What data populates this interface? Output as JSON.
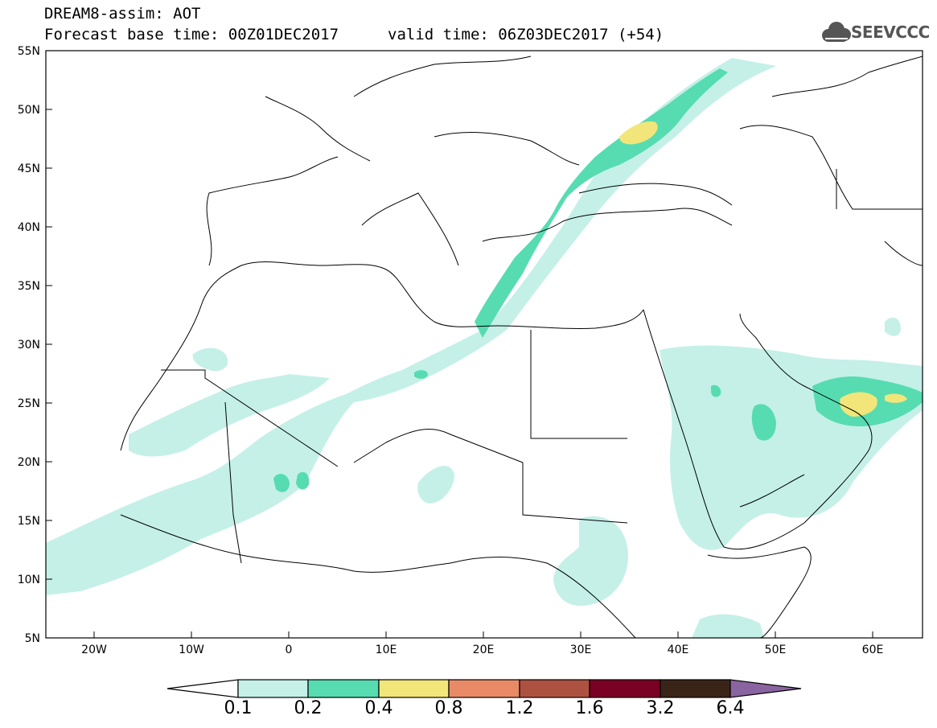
{
  "header": {
    "title_line1": "DREAM8-assim: AOT",
    "title_line2": "Forecast base time: 00Z01DEC2017",
    "valid_time": "valid time: 06Z03DEC2017 (+54)",
    "logo_text": "SEEVCCC"
  },
  "map": {
    "lat_labels": [
      "55N",
      "50N",
      "45N",
      "40N",
      "35N",
      "30N",
      "25N",
      "20N",
      "15N",
      "10N",
      "5N"
    ],
    "lon_labels": [
      "20W",
      "10W",
      "0",
      "10E",
      "20E",
      "30E",
      "40E",
      "50E",
      "60E"
    ],
    "lat_range": [
      5,
      55
    ],
    "lon_range": [
      -25,
      65
    ]
  },
  "legend": {
    "levels": [
      "0.1",
      "0.2",
      "0.4",
      "0.8",
      "1.2",
      "1.6",
      "3.2",
      "6.4"
    ],
    "colors": [
      "#ffffff",
      "#c4f0e8",
      "#56dcb0",
      "#f2e67a",
      "#e88a66",
      "#ad5240",
      "#7a0024",
      "#3a2418",
      "#8a64a0"
    ]
  }
}
